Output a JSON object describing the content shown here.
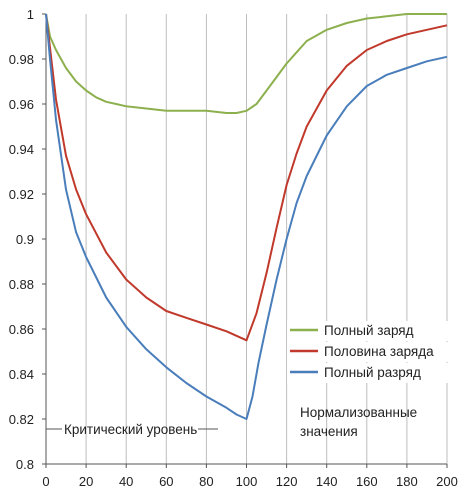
{
  "chart_data": {
    "type": "line",
    "title": "",
    "xlabel": "",
    "ylabel": "",
    "xlim": [
      0,
      200
    ],
    "ylim": [
      0.8,
      1.0
    ],
    "x_ticks": [
      "0",
      "20",
      "40",
      "60",
      "80",
      "100",
      "120",
      "140",
      "160",
      "180",
      "200"
    ],
    "y_ticks": [
      "0.8",
      "0.82",
      "0.84",
      "0.86",
      "0.88",
      "0.9",
      "0.92",
      "0.94",
      "0.96",
      "0.98",
      "1"
    ],
    "grid": "vertical",
    "legend_position": "right-middle",
    "series": [
      {
        "name": "Полный заряд",
        "color": "#8db04e",
        "x": [
          0,
          2,
          5,
          10,
          15,
          20,
          25,
          30,
          35,
          40,
          50,
          60,
          70,
          80,
          90,
          95,
          100,
          105,
          110,
          115,
          120,
          125,
          130,
          140,
          150,
          160,
          170,
          180,
          190,
          200
        ],
        "y": [
          1.0,
          0.99,
          0.984,
          0.976,
          0.97,
          0.966,
          0.963,
          0.961,
          0.96,
          0.959,
          0.958,
          0.957,
          0.957,
          0.957,
          0.956,
          0.956,
          0.957,
          0.96,
          0.966,
          0.972,
          0.978,
          0.983,
          0.988,
          0.993,
          0.996,
          0.998,
          0.999,
          1.0,
          1.0,
          1.0
        ]
      },
      {
        "name": "Половина заряда",
        "color": "#c0392b",
        "x": [
          0,
          2,
          5,
          10,
          15,
          20,
          30,
          40,
          50,
          60,
          70,
          80,
          90,
          95,
          100,
          105,
          110,
          115,
          120,
          125,
          130,
          140,
          150,
          160,
          170,
          180,
          190,
          200
        ],
        "y": [
          1.0,
          0.985,
          0.962,
          0.937,
          0.922,
          0.911,
          0.894,
          0.882,
          0.874,
          0.868,
          0.865,
          0.862,
          0.859,
          0.857,
          0.855,
          0.867,
          0.885,
          0.905,
          0.924,
          0.938,
          0.95,
          0.966,
          0.977,
          0.984,
          0.988,
          0.991,
          0.993,
          0.995
        ]
      },
      {
        "name": "Полный разряд",
        "color": "#4a7ebb",
        "x": [
          0,
          2,
          5,
          10,
          15,
          20,
          30,
          40,
          50,
          60,
          70,
          80,
          90,
          95,
          100,
          103,
          106,
          110,
          115,
          120,
          125,
          130,
          140,
          150,
          160,
          170,
          180,
          190,
          200
        ],
        "y": [
          1.0,
          0.98,
          0.953,
          0.922,
          0.903,
          0.892,
          0.874,
          0.861,
          0.851,
          0.843,
          0.836,
          0.83,
          0.825,
          0.822,
          0.82,
          0.83,
          0.845,
          0.862,
          0.882,
          0.9,
          0.916,
          0.928,
          0.946,
          0.959,
          0.968,
          0.973,
          0.976,
          0.979,
          0.981
        ]
      }
    ],
    "annotations": [
      {
        "text": "Критический уровень",
        "y": 0.82
      },
      {
        "text": "Нормализованные значения"
      }
    ]
  }
}
